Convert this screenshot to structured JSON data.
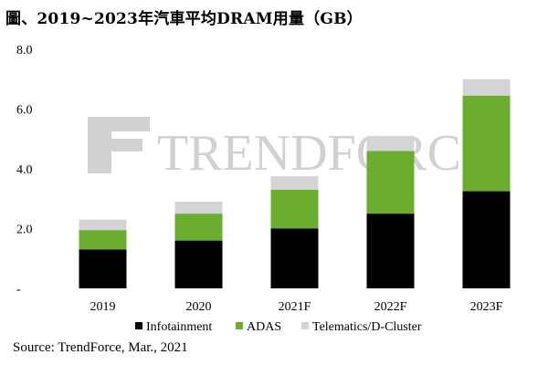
{
  "title": "圖、2019~2023年汽車平均DRAM用量（GB）",
  "source": "Source: TrendForce, Mar., 2021",
  "watermark": "TRENDFORCE",
  "chart_data": {
    "type": "bar",
    "stacked": true,
    "categories": [
      "2019",
      "2020",
      "2021F",
      "2022F",
      "2023F"
    ],
    "y_ticks": [
      "-",
      "2.0",
      "4.0",
      "6.0",
      "8.0"
    ],
    "ylim": [
      0,
      8
    ],
    "grid": false,
    "legend_position": "bottom",
    "series": [
      {
        "name": "Infotainment",
        "color": "#000000",
        "values": [
          1.3,
          1.6,
          2.0,
          2.5,
          3.25
        ]
      },
      {
        "name": "ADAS",
        "color": "#6aad2f",
        "values": [
          0.65,
          0.9,
          1.3,
          2.1,
          3.2
        ]
      },
      {
        "name": "Telematics/D-Cluster",
        "color": "#d4d4d4",
        "values": [
          0.35,
          0.4,
          0.45,
          0.5,
          0.55
        ]
      }
    ]
  }
}
